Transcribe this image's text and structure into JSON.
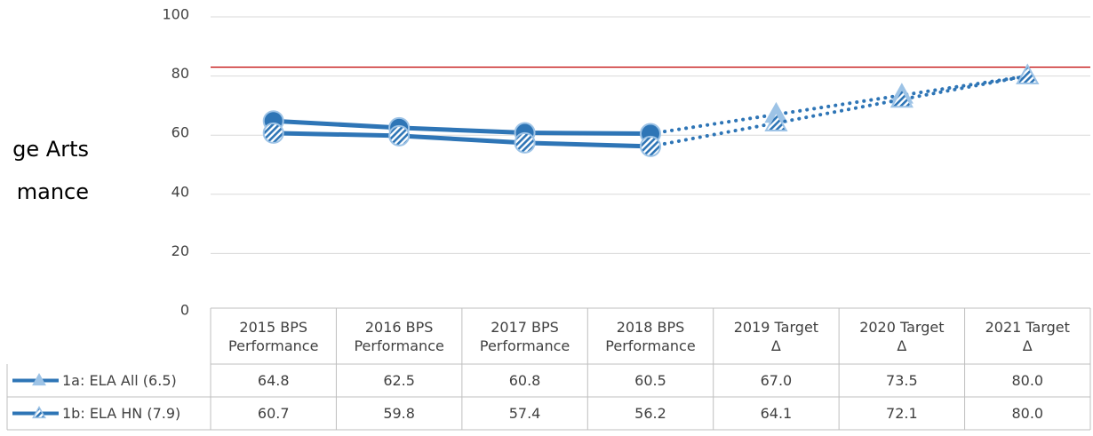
{
  "chart_data": {
    "type": "line",
    "title_lines": [
      "ge Arts",
      "mance"
    ],
    "categories": [
      "2015 BPS\nPerformance",
      "2016 BPS\nPerformance",
      "2017 BPS\nPerformance",
      "2018 BPS\nPerformance",
      "2019 Target\nΔ",
      "2020 Target\nΔ",
      "2021 Target\nΔ"
    ],
    "series": [
      {
        "name": "1a: ELA All (6.5)",
        "color": "#2e75b6",
        "marker_color": "#9dc3e6",
        "values": [
          64.8,
          62.5,
          60.8,
          60.5,
          67.0,
          73.5,
          80.0
        ],
        "value_labels": [
          "64.8",
          "62.5",
          "60.8",
          "60.5",
          "67.0",
          "73.5",
          "80.0"
        ]
      },
      {
        "name": "1b: ELA HN (7.9)",
        "color": "#2e75b6",
        "marker_color": "#9dc3e6",
        "hatched": true,
        "values": [
          60.7,
          59.8,
          57.4,
          56.2,
          64.1,
          72.1,
          80.0
        ],
        "value_labels": [
          "60.7",
          "59.8",
          "57.4",
          "56.2",
          "64.1",
          "72.1",
          "80.0"
        ]
      }
    ],
    "dashed_from": 3,
    "reference_line": {
      "value": 83,
      "color": "#c00000"
    },
    "ylim": [
      0,
      100
    ],
    "yticks": [
      0,
      20,
      40,
      60,
      80,
      100
    ],
    "grid": true
  }
}
